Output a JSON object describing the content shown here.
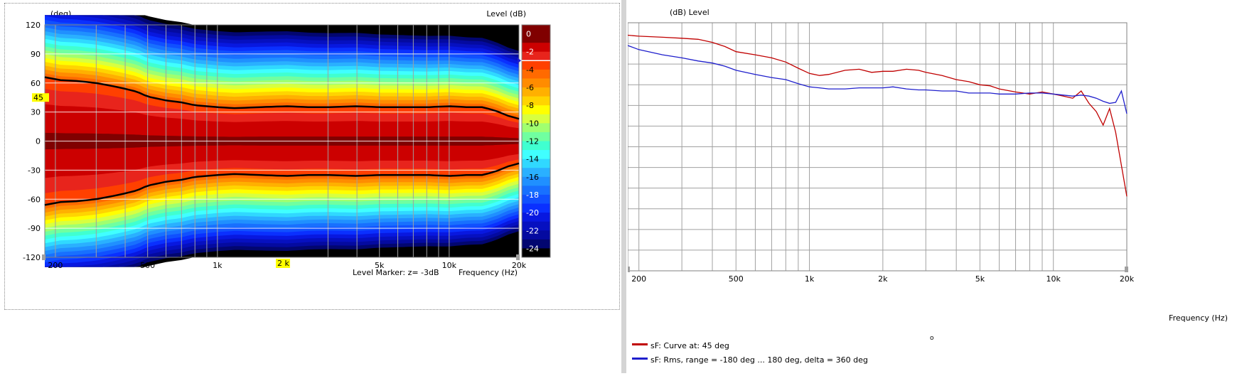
{
  "chart_data": [
    {
      "type": "heatmap",
      "title": "",
      "ylabel": "(deg)",
      "xlabel": "Frequency  (Hz)",
      "zlabel": "Level  (dB)",
      "x_scale": "log",
      "xlim": [
        180,
        20000
      ],
      "ylim": [
        -120,
        120
      ],
      "zlim": [
        -25,
        1
      ],
      "x_ticks": [
        {
          "v": 200,
          "label": "200"
        },
        {
          "v": 500,
          "label": "500"
        },
        {
          "v": 1000,
          "label": "1k"
        },
        {
          "v": 5000,
          "label": "5k"
        },
        {
          "v": 10000,
          "label": "10k"
        },
        {
          "v": 20000,
          "label": "20k"
        }
      ],
      "x_minor": [
        300,
        400,
        600,
        700,
        800,
        900,
        3000,
        4000,
        6000,
        7000,
        8000,
        9000
      ],
      "y_ticks": [
        {
          "v": 120,
          "label": "120"
        },
        {
          "v": 90,
          "label": "90"
        },
        {
          "v": 60,
          "label": "60"
        },
        {
          "v": 30,
          "label": "30"
        },
        {
          "v": 0,
          "label": "0"
        },
        {
          "v": -30,
          "label": "-30"
        },
        {
          "v": -60,
          "label": "-60"
        },
        {
          "v": -90,
          "label": "-90"
        },
        {
          "v": -120,
          "label": "-120"
        }
      ],
      "colorbar": [
        {
          "z": 1,
          "color": "#800000"
        },
        {
          "z": 0,
          "color": "#800000",
          "label": "0"
        },
        {
          "z": -1,
          "color": "#cc0000"
        },
        {
          "z": -2,
          "color": "#e8241c",
          "label": "-2"
        },
        {
          "z": -3,
          "color": "#ff4000"
        },
        {
          "z": -4,
          "color": "#ff6a00",
          "label": "-4"
        },
        {
          "z": -5,
          "color": "#ff8c00"
        },
        {
          "z": -6,
          "color": "#ffb000",
          "label": "-6"
        },
        {
          "z": -7,
          "color": "#ffd400"
        },
        {
          "z": -8,
          "color": "#ffff00",
          "label": "-8"
        },
        {
          "z": -9,
          "color": "#d8ff40"
        },
        {
          "z": -10,
          "color": "#a0ff70",
          "label": "-10"
        },
        {
          "z": -11,
          "color": "#70ffa0"
        },
        {
          "z": -12,
          "color": "#40ffd0",
          "label": "-12"
        },
        {
          "z": -13,
          "color": "#40ffff"
        },
        {
          "z": -14,
          "color": "#30d8ff",
          "label": "-14"
        },
        {
          "z": -15,
          "color": "#2ab0ff"
        },
        {
          "z": -16,
          "color": "#2090ff",
          "label": "-16"
        },
        {
          "z": -17,
          "color": "#1870ff"
        },
        {
          "z": -18,
          "color": "#1050ff",
          "label": "-18"
        },
        {
          "z": -19,
          "color": "#0a30ff"
        },
        {
          "z": -20,
          "color": "#0818e0",
          "label": "-20"
        },
        {
          "z": -21,
          "color": "#0610c0"
        },
        {
          "z": -22,
          "color": "#040aa0",
          "label": "-22"
        },
        {
          "z": -23,
          "color": "#020670"
        },
        {
          "z": -24,
          "color": "#000000",
          "label": "-24"
        },
        {
          "z": -25,
          "color": "#000000"
        }
      ],
      "beamwidth_freqs": [
        180,
        210,
        250,
        300,
        350,
        400,
        450,
        500,
        600,
        700,
        800,
        900,
        1000,
        1200,
        1500,
        2000,
        2500,
        3000,
        4000,
        5000,
        6000,
        8000,
        10000,
        12000,
        14000,
        16000,
        18000,
        20000
      ],
      "beamwidth_deg": [
        66,
        63,
        62,
        60,
        57,
        54,
        51,
        46,
        42,
        40,
        37,
        36,
        35,
        34,
        35,
        36,
        35,
        35,
        36,
        35,
        35,
        35,
        36,
        35,
        35,
        31,
        26,
        23
      ],
      "level_marker_db": -3,
      "annotations": {
        "level_marker": "Level Marker:  z= -3dB",
        "y_marker_value": 45,
        "y_marker": "45",
        "x_marker": "2 k",
        "colorbar_marker_db": -3
      }
    },
    {
      "type": "line",
      "title": "",
      "ylabel": "(dB)  Level",
      "xlabel": "Frequency  (Hz)",
      "x_scale": "log",
      "xlim": [
        180,
        20000
      ],
      "ylim": [
        -24,
        0
      ],
      "x_ticks": [
        {
          "v": 200,
          "label": "200"
        },
        {
          "v": 500,
          "label": "500"
        },
        {
          "v": 1000,
          "label": "1k"
        },
        {
          "v": 2000,
          "label": "2k"
        },
        {
          "v": 5000,
          "label": "5k"
        },
        {
          "v": 10000,
          "label": "10k"
        },
        {
          "v": 20000,
          "label": "20k"
        }
      ],
      "x_minor": [
        300,
        400,
        600,
        700,
        800,
        900,
        3000,
        4000,
        6000,
        7000,
        8000,
        9000
      ],
      "y_ticks": [
        0,
        -2,
        -4,
        -6,
        -8,
        -10,
        -12,
        -14,
        -16,
        -18,
        -20,
        -22,
        -24
      ],
      "grid": true,
      "x": [
        180,
        200,
        250,
        300,
        350,
        400,
        450,
        500,
        600,
        700,
        800,
        900,
        1000,
        1100,
        1200,
        1400,
        1600,
        1800,
        2000,
        2200,
        2500,
        2800,
        3000,
        3500,
        4000,
        4500,
        5000,
        5500,
        6000,
        7000,
        8000,
        9000,
        10000,
        11000,
        12000,
        13000,
        14000,
        15000,
        16000,
        17000,
        18000,
        19000,
        20000
      ],
      "series": [
        {
          "name": "sF: Curve at: 45 deg",
          "color": "#c00000",
          "y": [
            -1.2,
            -1.3,
            -1.4,
            -1.5,
            -1.6,
            -1.9,
            -2.3,
            -2.8,
            -3.1,
            -3.4,
            -3.8,
            -4.4,
            -4.9,
            -5.1,
            -5.0,
            -4.6,
            -4.5,
            -4.8,
            -4.7,
            -4.7,
            -4.5,
            -4.6,
            -4.8,
            -5.1,
            -5.5,
            -5.7,
            -6.0,
            -6.1,
            -6.4,
            -6.7,
            -6.9,
            -6.7,
            -6.9,
            -7.1,
            -7.3,
            -6.6,
            -7.8,
            -8.6,
            -9.9,
            -8.3,
            -10.6,
            -13.8,
            -16.8
          ]
        },
        {
          "name": "sF: Rms, range = -180 deg ... 180 deg, delta = 360 deg",
          "color": "#1f1fcc",
          "y": [
            -2.2,
            -2.6,
            -3.1,
            -3.4,
            -3.7,
            -3.9,
            -4.2,
            -4.6,
            -5.0,
            -5.3,
            -5.5,
            -5.9,
            -6.2,
            -6.3,
            -6.4,
            -6.4,
            -6.3,
            -6.3,
            -6.3,
            -6.2,
            -6.4,
            -6.5,
            -6.5,
            -6.6,
            -6.6,
            -6.8,
            -6.8,
            -6.8,
            -6.9,
            -6.9,
            -6.8,
            -6.8,
            -6.9,
            -7.0,
            -7.1,
            -7.0,
            -7.1,
            -7.3,
            -7.6,
            -7.8,
            -7.7,
            -6.6,
            -8.8
          ]
        }
      ],
      "legend_position": "bottom-left"
    }
  ],
  "left_chart": {
    "ylabel": "(deg)",
    "zlabel": "Level  (dB)",
    "xlabel": "Frequency  (Hz)",
    "level_marker": "Level Marker:  z= -3dB",
    "y_marker": "45",
    "x_marker": "2 k"
  },
  "right_chart": {
    "ylabel": "(dB)  Level",
    "xlabel": "Frequency  (Hz)",
    "legend": [
      {
        "label": "sF: Curve at: 45 deg",
        "color": "#c00000"
      },
      {
        "label": "sF: Rms, range = -180 deg ... 180 deg, delta = 360 deg",
        "color": "#1f1fcc"
      }
    ],
    "degree_mark": "o"
  },
  "colors": {
    "grid": "#a0a0a0",
    "marker_bg": "#ffff00",
    "divider": "#d4d4d4"
  }
}
